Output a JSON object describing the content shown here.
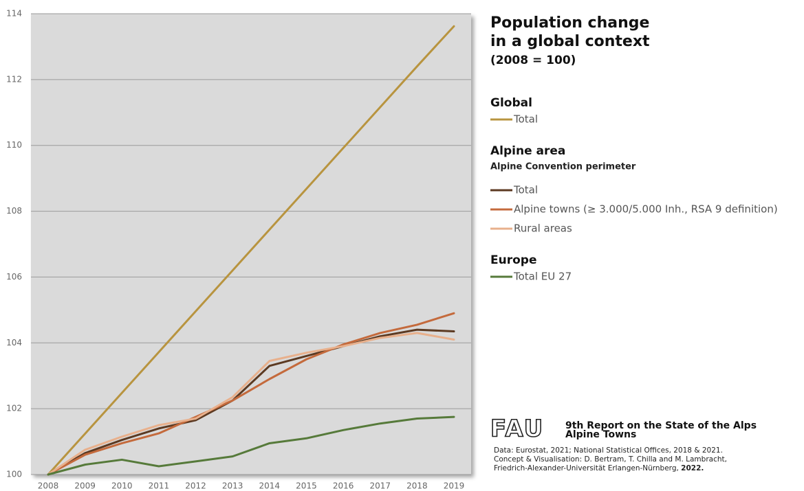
{
  "chart_data": {
    "type": "line",
    "title_lines": [
      "Population change",
      "in a global context"
    ],
    "subtitle": "(2008 = 100)",
    "categories": [
      "2008",
      "2009",
      "2010",
      "2011",
      "2012",
      "2013",
      "2014",
      "2015",
      "2016",
      "2017",
      "2018",
      "2019"
    ],
    "ylim": [
      100,
      114
    ],
    "yticks": [
      100,
      102,
      104,
      106,
      108,
      110,
      112,
      114
    ],
    "grid": true,
    "groups": [
      {
        "heading": "Global",
        "series": [
          {
            "name": "Total",
            "color": "#b8943f",
            "values": [
              100,
              101.24,
              102.48,
              103.72,
              104.96,
              106.2,
              107.44,
              108.68,
              109.92,
              111.16,
              112.4,
              113.62
            ]
          }
        ]
      },
      {
        "heading": "Alpine area",
        "note": "Alpine Convention perimeter",
        "series": [
          {
            "name": "Total",
            "color": "#5c3a22",
            "values": [
              100,
              100.65,
              101.05,
              101.4,
              101.65,
              102.25,
              103.3,
              103.6,
              103.9,
              104.2,
              104.4,
              104.35
            ]
          },
          {
            "name": "Alpine towns (≥ 3.000/5.000 Inh., RSA 9 definition)",
            "color": "#c46a3c",
            "values": [
              100,
              100.6,
              100.95,
              101.25,
              101.75,
              102.25,
              102.9,
              103.5,
              103.95,
              104.3,
              104.55,
              104.9
            ]
          },
          {
            "name": "Rural areas",
            "color": "#e8b08c",
            "values": [
              100,
              100.75,
              101.15,
              101.5,
              101.7,
              102.35,
              103.45,
              103.7,
              103.9,
              104.15,
              104.3,
              104.1
            ]
          }
        ]
      },
      {
        "heading": "Europe",
        "series": [
          {
            "name": "Total EU 27",
            "color": "#567a3a",
            "values": [
              100,
              100.3,
              100.45,
              100.25,
              100.4,
              100.55,
              100.95,
              101.1,
              101.35,
              101.55,
              101.7,
              101.75
            ]
          }
        ]
      }
    ],
    "source": {
      "logo": "FAU",
      "report": "9th Report on the State of the Alps",
      "report_sub": "Alpine Towns",
      "lines": [
        "Data: Eurostat, 2021; National Statistical Offices, 2018 & 2021.",
        "Concept & Visualisation: D. Bertram, T. Chilla and M. Lambracht,",
        "Friedrich-Alexander-Universität Erlangen-Nürnberg, "
      ],
      "year": "2022."
    }
  }
}
